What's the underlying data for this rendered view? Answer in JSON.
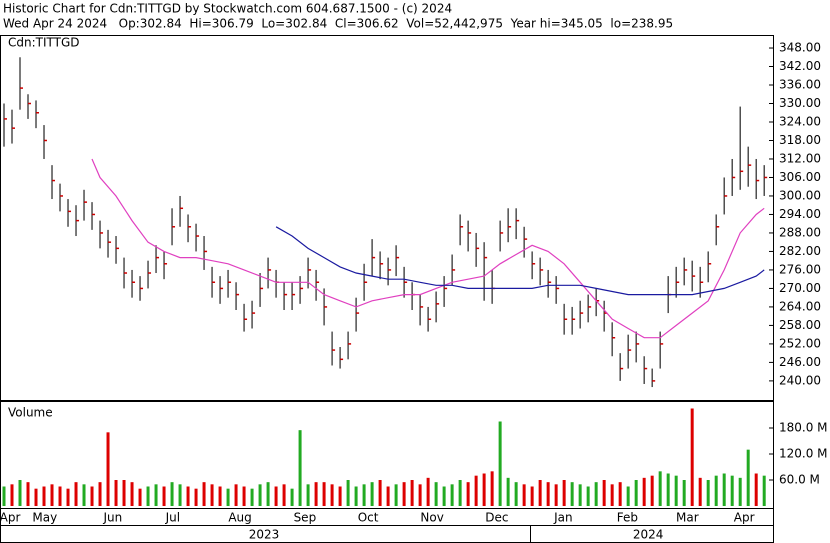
{
  "chart_data": {
    "type": "ohlc",
    "title": "Historic Chart for Cdn:TITTGD by Stockwatch.com 604.687.1500 - (c) 2024",
    "subtitle": "Wed Apr 24 2024   Op:302.84  Hi=306.79  Lo=302.84  Cl=306.62  Vol=52,442,975  Year hi=345.05  lo=238.95",
    "price_label": "Cdn:TITTGD",
    "volume_label": "Volume",
    "xlim": [
      -0.5,
      96.1
    ],
    "xticks": [
      {
        "value": 0.75,
        "label": "Apr"
      },
      {
        "value": 5.1,
        "label": "May"
      },
      {
        "value": 13.6,
        "label": "Jun"
      },
      {
        "value": 21.1,
        "label": "Jul"
      },
      {
        "value": 29.5,
        "label": "Aug"
      },
      {
        "value": 37.6,
        "label": "Sep"
      },
      {
        "value": 45.5,
        "label": "Oct"
      },
      {
        "value": 53.5,
        "label": "Nov"
      },
      {
        "value": 61.6,
        "label": "Dec"
      },
      {
        "value": 69.9,
        "label": "Jan"
      },
      {
        "value": 77.9,
        "label": "Feb"
      },
      {
        "value": 85.4,
        "label": "Mar"
      },
      {
        "value": 92.5,
        "label": "Apr"
      }
    ],
    "year_labels": [
      {
        "value": 32.5,
        "label": "2023"
      },
      {
        "value": 80.5,
        "label": "2024"
      }
    ],
    "ylim": [
      233.8,
      351.9
    ],
    "yticks": [
      {
        "value": 240,
        "label": "240.00"
      },
      {
        "value": 246,
        "label": "246.00"
      },
      {
        "value": 252,
        "label": "252.00"
      },
      {
        "value": 258,
        "label": "258.00"
      },
      {
        "value": 264,
        "label": "264.00"
      },
      {
        "value": 270,
        "label": "270.00"
      },
      {
        "value": 276,
        "label": "276.00"
      },
      {
        "value": 282,
        "label": "282.00"
      },
      {
        "value": 288,
        "label": "288.00"
      },
      {
        "value": 294,
        "label": "294.00"
      },
      {
        "value": 300,
        "label": "300.00"
      },
      {
        "value": 306,
        "label": "306.00"
      },
      {
        "value": 312,
        "label": "312.00"
      },
      {
        "value": 318,
        "label": "318.00"
      },
      {
        "value": 324,
        "label": "324.00"
      },
      {
        "value": 330,
        "label": "330.00"
      },
      {
        "value": 336,
        "label": "336.00"
      },
      {
        "value": 342,
        "label": "342.00"
      },
      {
        "value": 348,
        "label": "348.00"
      }
    ],
    "y2lim": [
      0,
      240
    ],
    "y2ticks": [
      {
        "value": 60,
        "label": "60.0 M"
      },
      {
        "value": 120,
        "label": "120.0 M"
      },
      {
        "value": 180,
        "label": "180.0 M"
      }
    ],
    "high": [
      330,
      328,
      345,
      333,
      331,
      323,
      310,
      304,
      299,
      297,
      302,
      298,
      292,
      289,
      287,
      280,
      276,
      274,
      279,
      284,
      282,
      296,
      300,
      294,
      291,
      287,
      277,
      274,
      276,
      272,
      265,
      266,
      275,
      280,
      276,
      272,
      272,
      274,
      280,
      276,
      270,
      256,
      251,
      256,
      267,
      278,
      286,
      282,
      280,
      284,
      277,
      272,
      268,
      264,
      269,
      274,
      281,
      294,
      292,
      288,
      285,
      276,
      292,
      296,
      296,
      290,
      282,
      280,
      276,
      274,
      265,
      264,
      266,
      268,
      270,
      266,
      259,
      249,
      255,
      256,
      248,
      244,
      256,
      274,
      277,
      280,
      279,
      277,
      282,
      294,
      306,
      312,
      329,
      316,
      312,
      310
    ],
    "low": [
      316,
      317,
      328,
      325,
      322,
      312,
      299,
      295,
      290,
      287,
      292,
      289,
      283,
      280,
      278,
      270,
      267,
      266,
      270,
      275,
      273,
      284,
      290,
      285,
      282,
      276,
      267,
      265,
      267,
      263,
      256,
      257,
      264,
      270,
      267,
      263,
      263,
      265,
      270,
      266,
      258,
      245,
      244,
      247,
      256,
      266,
      274,
      273,
      271,
      274,
      267,
      263,
      258,
      256,
      259,
      264,
      271,
      284,
      282,
      277,
      266,
      265,
      282,
      285,
      286,
      280,
      273,
      271,
      267,
      265,
      255,
      255,
      257,
      259,
      261,
      256,
      248,
      240,
      244,
      246,
      239,
      238,
      244,
      262,
      267,
      271,
      269,
      267,
      272,
      284,
      294,
      300,
      302,
      303,
      299,
      300
    ],
    "close": [
      325,
      322,
      335,
      330,
      327,
      318,
      305,
      300,
      295,
      292,
      298,
      294,
      288,
      285,
      283,
      275,
      272,
      270,
      275,
      280,
      278,
      290,
      296,
      290,
      287,
      282,
      272,
      270,
      272,
      268,
      260,
      262,
      270,
      276,
      272,
      268,
      268,
      270,
      276,
      272,
      264,
      250,
      247,
      252,
      262,
      272,
      280,
      278,
      276,
      280,
      272,
      268,
      264,
      260,
      265,
      270,
      276,
      290,
      288,
      283,
      280,
      270,
      288,
      290,
      292,
      286,
      278,
      276,
      272,
      270,
      260,
      260,
      262,
      264,
      266,
      262,
      254,
      244,
      250,
      252,
      244,
      240,
      252,
      268,
      272,
      276,
      274,
      272,
      278,
      290,
      300,
      306,
      308,
      310,
      305,
      306
    ],
    "volume": [
      45,
      50,
      60,
      55,
      40,
      45,
      50,
      45,
      40,
      55,
      50,
      45,
      55,
      170,
      60,
      60,
      55,
      40,
      45,
      50,
      45,
      55,
      50,
      45,
      40,
      55,
      50,
      45,
      40,
      50,
      45,
      40,
      50,
      55,
      45,
      50,
      40,
      175,
      50,
      55,
      55,
      50,
      45,
      60,
      45,
      50,
      55,
      60,
      45,
      50,
      55,
      60,
      50,
      65,
      55,
      45,
      50,
      60,
      55,
      70,
      75,
      80,
      195,
      65,
      55,
      50,
      45,
      60,
      55,
      50,
      60,
      55,
      50,
      45,
      55,
      60,
      50,
      55,
      45,
      60,
      65,
      70,
      80,
      75,
      70,
      60,
      225,
      65,
      60,
      70,
      75,
      70,
      65,
      130,
      75,
      70
    ],
    "bar_color": "#222222",
    "close_color": "#cc0000",
    "up_color": "#22aa22",
    "down_color": "#dd0000",
    "moving_averages": [
      {
        "color": "#e040c0",
        "x": [
          11,
          12,
          14,
          16,
          18,
          20,
          22,
          24,
          26,
          28,
          30,
          32,
          34,
          36,
          38,
          40,
          42,
          44,
          46,
          48,
          50,
          52,
          54,
          56,
          58,
          60,
          62,
          64,
          66,
          68,
          70,
          72,
          74,
          76,
          78,
          80,
          82,
          84,
          86,
          88,
          90,
          92,
          94,
          95
        ],
        "values": [
          312,
          306,
          300,
          292,
          285,
          282,
          280,
          280,
          279,
          278,
          276,
          274,
          272,
          272,
          272,
          268,
          266,
          264,
          266,
          267,
          268,
          268,
          270,
          272,
          273,
          274,
          278,
          281,
          284,
          282,
          278,
          272,
          266,
          260,
          257,
          254,
          254,
          258,
          262,
          266,
          276,
          288,
          294,
          296
        ]
      },
      {
        "color": "#1a1aa0",
        "x": [
          34,
          36,
          38,
          40,
          42,
          44,
          46,
          48,
          50,
          52,
          54,
          56,
          58,
          60,
          62,
          64,
          66,
          68,
          70,
          72,
          74,
          76,
          78,
          80,
          82,
          84,
          86,
          88,
          90,
          92,
          94,
          95
        ],
        "values": [
          290,
          287,
          283,
          280,
          277,
          275,
          274,
          273,
          273,
          272,
          271,
          271,
          270,
          270,
          270,
          270,
          270,
          271,
          271,
          271,
          270,
          269,
          268,
          268,
          268,
          268,
          268,
          269,
          270,
          272,
          274,
          276
        ]
      }
    ]
  }
}
